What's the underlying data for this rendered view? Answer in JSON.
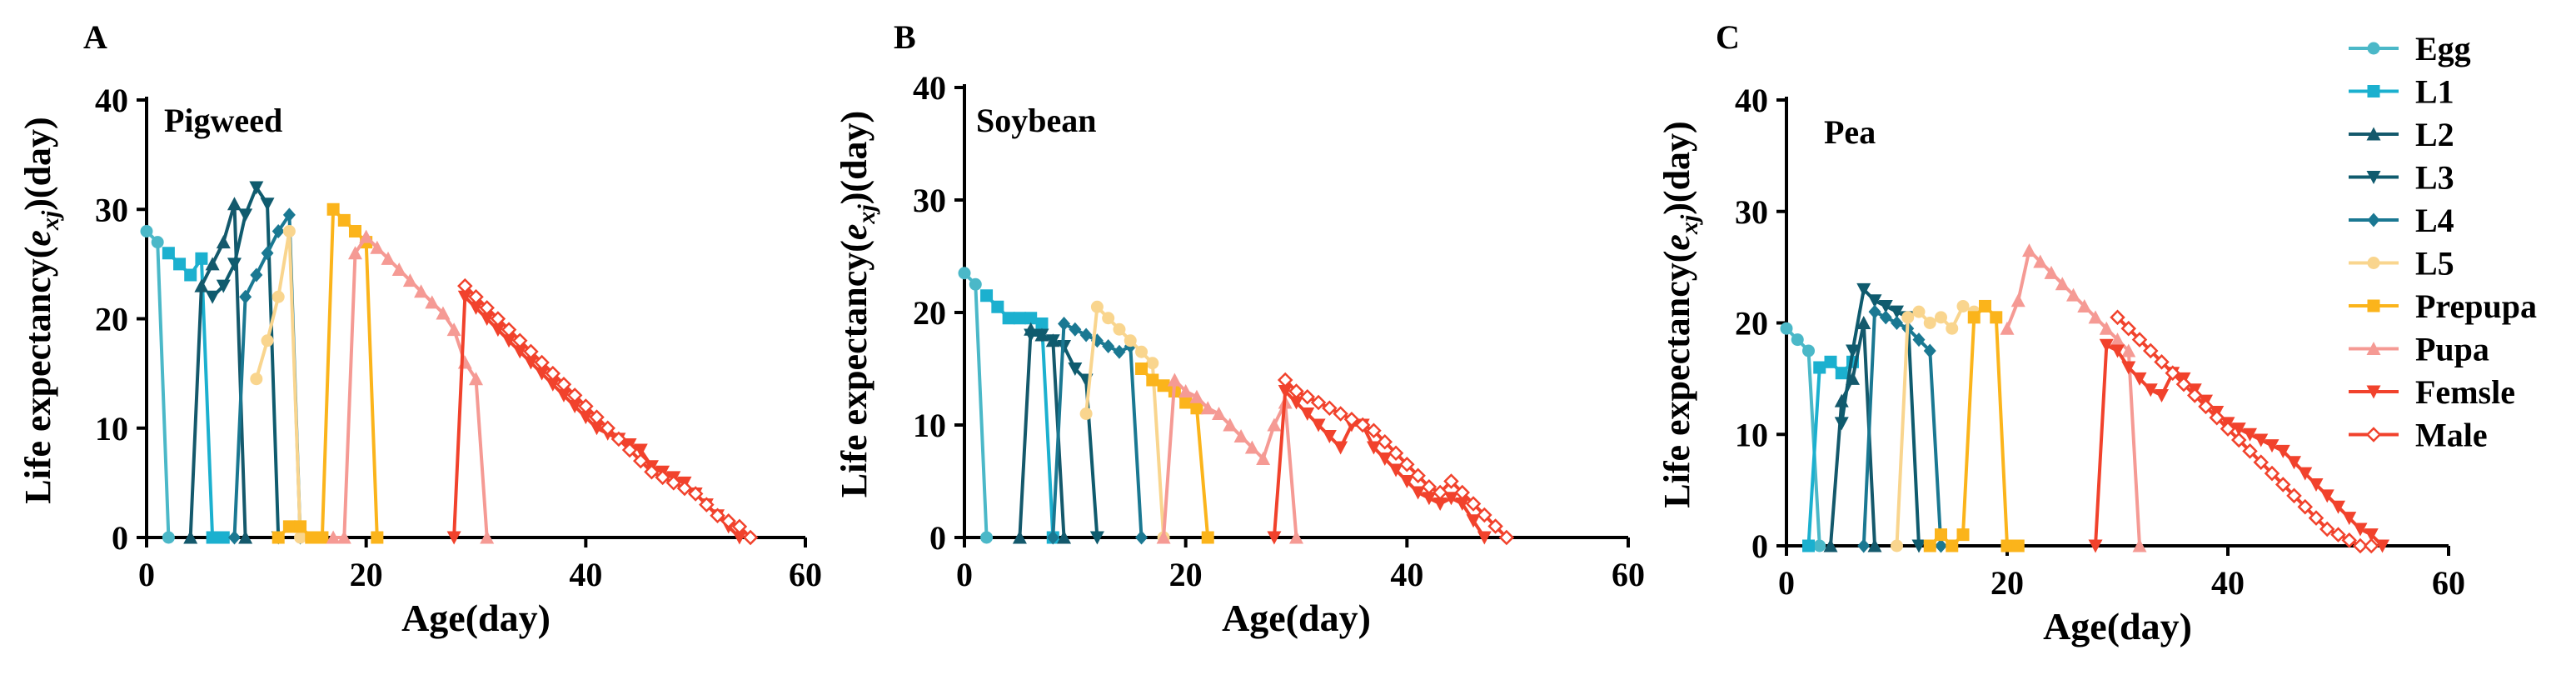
{
  "chart_data": [
    {
      "type": "line",
      "panel_label": "A",
      "title": "Pigweed",
      "xlabel": "Age(day)",
      "ylabel_parts": [
        "Life expectancy(",
        "e",
        "xj",
        ")(day)"
      ],
      "xlim": [
        0,
        60
      ],
      "ylim": [
        0,
        40
      ],
      "xticks": [
        0,
        20,
        40,
        60
      ],
      "yticks": [
        0,
        10,
        20,
        30,
        40
      ],
      "series": [
        {
          "name": "Egg",
          "x": [
            0,
            1,
            2
          ],
          "y": [
            28,
            27,
            0
          ]
        },
        {
          "name": "L1",
          "x": [
            2,
            3,
            4,
            5,
            6,
            7
          ],
          "y": [
            26,
            25,
            24,
            25.5,
            0,
            0
          ]
        },
        {
          "name": "L2",
          "x": [
            4,
            5,
            6,
            7,
            8,
            9
          ],
          "y": [
            0,
            23,
            25,
            27,
            30.5,
            0
          ]
        },
        {
          "name": "L3",
          "x": [
            6,
            7,
            8,
            9,
            10,
            11,
            12
          ],
          "y": [
            22,
            23,
            25,
            29.5,
            32,
            30.5,
            0
          ]
        },
        {
          "name": "L4",
          "x": [
            8,
            9,
            10,
            11,
            12,
            13,
            14
          ],
          "y": [
            0,
            22,
            24,
            26,
            28,
            29.5,
            0
          ]
        },
        {
          "name": "L5",
          "x": [
            10,
            11,
            12,
            13,
            14
          ],
          "y": [
            14.5,
            18,
            22,
            28,
            0
          ]
        },
        {
          "name": "Prepupa",
          "x": [
            12,
            13,
            14,
            15,
            16,
            17,
            18,
            19,
            20,
            21
          ],
          "y": [
            0,
            1,
            1,
            0,
            0,
            30,
            29,
            28,
            27,
            0
          ]
        },
        {
          "name": "Pupa",
          "x": [
            17,
            18,
            19,
            20,
            21,
            22,
            23,
            24,
            25,
            26,
            27,
            28,
            29,
            30,
            31
          ],
          "y": [
            0,
            0,
            26,
            27.5,
            26.5,
            25.5,
            24.5,
            23.5,
            22.5,
            21.5,
            20.5,
            19,
            16,
            14.5,
            0
          ]
        },
        {
          "name": "Femsle",
          "x": [
            28,
            29,
            30,
            31,
            32,
            33,
            34,
            35,
            36,
            37,
            38,
            39,
            40,
            41,
            42,
            43,
            44,
            45,
            46,
            47,
            48,
            49,
            50,
            51,
            52,
            53,
            54
          ],
          "y": [
            0,
            22,
            21,
            20,
            19,
            18,
            17,
            16,
            15,
            14,
            13,
            12,
            11,
            10,
            9.5,
            9,
            8.5,
            8,
            6.5,
            6,
            5.5,
            5,
            4,
            3,
            2,
            1,
            0
          ]
        },
        {
          "name": "Male",
          "x": [
            29,
            30,
            31,
            32,
            33,
            34,
            35,
            36,
            37,
            38,
            39,
            40,
            41,
            42,
            43,
            44,
            45,
            46,
            47,
            48,
            49,
            50,
            51,
            52,
            53,
            54,
            55
          ],
          "y": [
            23,
            22,
            21,
            20,
            19,
            18,
            17,
            16,
            15,
            14,
            13,
            12,
            11,
            10,
            9,
            8,
            7,
            6,
            5.5,
            5,
            4.5,
            4,
            3,
            2,
            1.5,
            1,
            0
          ]
        }
      ]
    },
    {
      "type": "line",
      "panel_label": "B",
      "title": "Soybean",
      "xlabel": "Age(day)",
      "ylabel_parts": [
        "Life expectancy(",
        "e",
        "xj",
        ")(day)"
      ],
      "xlim": [
        0,
        60
      ],
      "ylim": [
        0,
        40
      ],
      "xticks": [
        0,
        20,
        40,
        60
      ],
      "yticks": [
        0,
        10,
        20,
        30,
        40
      ],
      "series": [
        {
          "name": "Egg",
          "x": [
            0,
            1,
            2
          ],
          "y": [
            23.5,
            22.5,
            0
          ]
        },
        {
          "name": "L1",
          "x": [
            2,
            3,
            4,
            5,
            6,
            7,
            8
          ],
          "y": [
            21.5,
            20.5,
            19.5,
            19.5,
            19.5,
            19,
            0
          ]
        },
        {
          "name": "L2",
          "x": [
            5,
            6,
            7,
            8,
            9
          ],
          "y": [
            0,
            18.5,
            18,
            17.5,
            0
          ]
        },
        {
          "name": "L3",
          "x": [
            6,
            7,
            8,
            9,
            10,
            11,
            12
          ],
          "y": [
            18,
            18,
            17.5,
            17,
            15,
            14,
            0
          ]
        },
        {
          "name": "L4",
          "x": [
            8,
            9,
            10,
            11,
            12,
            13,
            14,
            15,
            16
          ],
          "y": [
            0,
            19,
            18.5,
            18,
            17.5,
            17,
            16.5,
            17,
            0
          ]
        },
        {
          "name": "L5",
          "x": [
            11,
            12,
            13,
            14,
            15,
            16,
            17,
            18
          ],
          "y": [
            11,
            20.5,
            19.5,
            18.5,
            17.5,
            16.5,
            15.5,
            0
          ]
        },
        {
          "name": "Prepupa",
          "x": [
            16,
            17,
            18,
            19,
            20,
            21,
            22
          ],
          "y": [
            15,
            14,
            13.5,
            13,
            12,
            11.5,
            0
          ]
        },
        {
          "name": "Pupa",
          "x": [
            18,
            19,
            20,
            21,
            22,
            23,
            24,
            25,
            26,
            27,
            28,
            29,
            30
          ],
          "y": [
            0,
            14,
            13,
            12.5,
            11.5,
            11,
            10,
            9,
            8,
            7,
            10,
            12,
            0
          ]
        },
        {
          "name": "Femsle",
          "x": [
            28,
            29,
            30,
            31,
            32,
            33,
            34,
            35,
            36,
            37,
            38,
            39,
            40,
            41,
            42,
            43,
            44,
            45,
            46,
            47
          ],
          "y": [
            0,
            13,
            12,
            11,
            10,
            9,
            8,
            10,
            10,
            8,
            7,
            6,
            5,
            4,
            3.5,
            3,
            3.5,
            3,
            1.5,
            0
          ]
        },
        {
          "name": "Male",
          "x": [
            29,
            30,
            31,
            32,
            33,
            34,
            35,
            36,
            37,
            38,
            39,
            40,
            41,
            42,
            43,
            44,
            45,
            46,
            47,
            48,
            49
          ],
          "y": [
            14,
            13,
            12.5,
            12,
            11.5,
            11,
            10.5,
            10,
            9.5,
            8.5,
            7.5,
            6.5,
            5.5,
            4.5,
            4,
            5,
            4,
            3,
            2,
            1,
            0
          ]
        }
      ]
    },
    {
      "type": "line",
      "panel_label": "C",
      "title": "Pea",
      "xlabel": "Age(day)",
      "ylabel_parts": [
        "Life expectancy(",
        "e",
        "xj",
        ")(day)"
      ],
      "xlim": [
        0,
        60
      ],
      "ylim": [
        0,
        40
      ],
      "xticks": [
        0,
        20,
        40,
        60
      ],
      "yticks": [
        0,
        10,
        20,
        30,
        40
      ],
      "series": [
        {
          "name": "Egg",
          "x": [
            0,
            1,
            2,
            3
          ],
          "y": [
            19.5,
            18.5,
            17.5,
            0
          ]
        },
        {
          "name": "L1",
          "x": [
            2,
            3,
            4,
            5,
            6
          ],
          "y": [
            0,
            16,
            16.5,
            15.5,
            16.5
          ]
        },
        {
          "name": "L2",
          "x": [
            4,
            5,
            6,
            7,
            8
          ],
          "y": [
            0,
            13,
            15,
            20,
            0
          ]
        },
        {
          "name": "L3",
          "x": [
            5,
            6,
            7,
            8,
            9,
            10,
            11,
            12
          ],
          "y": [
            11,
            17.5,
            23,
            22,
            21.5,
            21,
            20.5,
            0
          ]
        },
        {
          "name": "L4",
          "x": [
            7,
            8,
            9,
            10,
            11,
            12,
            13,
            14
          ],
          "y": [
            0,
            21,
            20.5,
            20,
            19.5,
            18.5,
            17.5,
            0
          ]
        },
        {
          "name": "L5",
          "x": [
            10,
            11,
            12,
            13,
            14,
            15,
            16,
            17
          ],
          "y": [
            0,
            20.5,
            21,
            20,
            20.5,
            19.5,
            21.5,
            21
          ]
        },
        {
          "name": "Prepupa",
          "x": [
            13,
            14,
            15,
            16,
            17,
            18,
            19,
            20,
            21
          ],
          "y": [
            0,
            1,
            0,
            1,
            20.5,
            21.5,
            20.5,
            0,
            0
          ]
        },
        {
          "name": "Pupa",
          "x": [
            20,
            21,
            22,
            23,
            24,
            25,
            26,
            27,
            28,
            29,
            30,
            31,
            32
          ],
          "y": [
            19.5,
            22,
            26.5,
            25.5,
            24.5,
            23.5,
            22.5,
            21.5,
            20.5,
            19.5,
            18.5,
            17.5,
            0
          ]
        },
        {
          "name": "Femsle",
          "x": [
            28,
            29,
            30,
            31,
            32,
            33,
            34,
            35,
            36,
            37,
            38,
            39,
            40,
            41,
            42,
            43,
            44,
            45,
            46,
            47,
            48,
            49,
            50,
            51,
            52,
            53,
            54
          ],
          "y": [
            0,
            18,
            17.5,
            16,
            15,
            14,
            13.5,
            15.5,
            15,
            14,
            13,
            12,
            11,
            10.5,
            10,
            9.5,
            9,
            8.5,
            7.5,
            6.5,
            5.5,
            4.5,
            3.5,
            2.5,
            1.5,
            1,
            0
          ]
        },
        {
          "name": "Male",
          "x": [
            30,
            31,
            32,
            33,
            34,
            35,
            36,
            37,
            38,
            39,
            40,
            41,
            42,
            43,
            44,
            45,
            46,
            47,
            48,
            49,
            50,
            51,
            52,
            53
          ],
          "y": [
            20.5,
            19.5,
            18.5,
            17.5,
            16.5,
            15.5,
            14.5,
            13.5,
            12.5,
            11.5,
            10.5,
            9.5,
            8.5,
            7.5,
            6.5,
            5.5,
            4.5,
            3.5,
            2.5,
            1.5,
            1,
            0.5,
            0,
            0
          ]
        }
      ]
    }
  ],
  "legend": {
    "placement": "right",
    "entries": [
      {
        "name": "Egg",
        "color": "#4BB8C8",
        "marker": "circle"
      },
      {
        "name": "L1",
        "color": "#1BB0CF",
        "marker": "square"
      },
      {
        "name": "L2",
        "color": "#14596C",
        "marker": "triangle-up"
      },
      {
        "name": "L3",
        "color": "#0F5B6E",
        "marker": "triangle-down"
      },
      {
        "name": "L4",
        "color": "#1A7892",
        "marker": "diamond"
      },
      {
        "name": "L5",
        "color": "#F9D58E",
        "marker": "circle"
      },
      {
        "name": "Prepupa",
        "color": "#FBB41B",
        "marker": "square"
      },
      {
        "name": "Pupa",
        "color": "#F59A94",
        "marker": "triangle-up"
      },
      {
        "name": "Femsle",
        "color": "#F1422C",
        "marker": "triangle-down"
      },
      {
        "name": "Male",
        "color": "#F1422C",
        "marker": "diamond-open"
      }
    ]
  }
}
